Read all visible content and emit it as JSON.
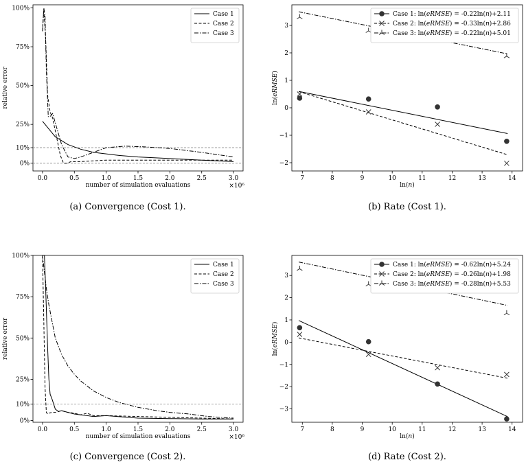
{
  "chart_data": [
    {
      "type": "line",
      "panel": "a",
      "caption": "(a)  Convergence (Cost 1).",
      "xlabel": "number of simulation evaluations",
      "ylabel": "relative error",
      "x_multiplier": "×10⁶",
      "xlim": [
        -0.15,
        3.15
      ],
      "ylim": [
        -0.05,
        1.02
      ],
      "xticks": [
        0.0,
        0.5,
        1.0,
        1.5,
        2.0,
        2.5,
        3.0
      ],
      "xtick_labels": [
        "0.0",
        "0.5",
        "1.0",
        "1.5",
        "2.0",
        "2.5",
        "3.0"
      ],
      "yticks": [
        0.0,
        0.1,
        0.25,
        0.5,
        0.75,
        1.0
      ],
      "ytick_labels": [
        "0%",
        "10%",
        "25%",
        "50%",
        "75%",
        "100%"
      ],
      "hlines": [
        0.0,
        0.1
      ],
      "legend": "top-right",
      "series": [
        {
          "name": "Case 1",
          "style": "solid",
          "x": [
            0.0,
            0.1,
            0.2,
            0.4,
            0.6,
            0.8,
            1.0,
            1.2,
            1.5,
            2.0,
            2.5,
            3.0
          ],
          "y": [
            0.27,
            0.22,
            0.17,
            0.12,
            0.09,
            0.07,
            0.06,
            0.05,
            0.04,
            0.03,
            0.02,
            0.01
          ]
        },
        {
          "name": "Case 2",
          "style": "dashed",
          "x": [
            0.0,
            0.02,
            0.05,
            0.08,
            0.12,
            0.16,
            0.22,
            0.28,
            0.33,
            0.38,
            0.45,
            0.6,
            1.0,
            2.0,
            3.0
          ],
          "y": [
            0.85,
            0.99,
            0.8,
            0.44,
            0.33,
            0.29,
            0.17,
            0.05,
            0.0,
            0.0,
            0.01,
            0.01,
            0.02,
            0.02,
            0.02
          ]
        },
        {
          "name": "Case 3",
          "style": "dashdot",
          "x": [
            0.0,
            0.02,
            0.04,
            0.06,
            0.09,
            0.12,
            0.16,
            0.2,
            0.3,
            0.4,
            0.5,
            0.6,
            0.8,
            1.0,
            1.3,
            1.6,
            2.0,
            2.5,
            3.0
          ],
          "y": [
            0.85,
            1.0,
            0.95,
            0.6,
            0.3,
            0.3,
            0.32,
            0.26,
            0.12,
            0.04,
            0.03,
            0.04,
            0.07,
            0.1,
            0.11,
            0.105,
            0.095,
            0.07,
            0.04
          ]
        }
      ]
    },
    {
      "type": "scatter",
      "panel": "b",
      "caption": "(b)  Rate (Cost 1).",
      "xlabel": "ln(𝑛)",
      "ylabel": "ln(𝑒𝑅𝑀𝑆𝐸)",
      "xlim": [
        6.65,
        14.35
      ],
      "ylim": [
        -2.3,
        3.75
      ],
      "xticks": [
        7,
        8,
        9,
        10,
        11,
        12,
        13,
        14
      ],
      "xtick_labels": [
        "7",
        "8",
        "9",
        "10",
        "11",
        "12",
        "13",
        "14"
      ],
      "yticks": [
        -2,
        -1,
        0,
        1,
        2,
        3
      ],
      "ytick_labels": [
        "−2",
        "−1",
        "0",
        "1",
        "2",
        "3"
      ],
      "legend": "top-right",
      "series": [
        {
          "name": "Case 1: ln(𝑒𝑅𝑀𝑆𝐸) = -0.22ln(𝑛)+2.11",
          "marker": "circle",
          "line": "solid",
          "slope": -0.22,
          "intercept": 2.11,
          "x": [
            6.91,
            9.21,
            11.51,
            13.82
          ],
          "y": [
            0.35,
            0.32,
            0.03,
            -1.22
          ]
        },
        {
          "name": "Case 2: ln(𝑒𝑅𝑀𝑆𝐸) = -0.33ln(𝑛)+2.86",
          "marker": "x",
          "line": "dashed",
          "slope": -0.33,
          "intercept": 2.86,
          "x": [
            6.91,
            9.21,
            11.51,
            13.82
          ],
          "y": [
            0.5,
            -0.15,
            -0.6,
            -2.02
          ]
        },
        {
          "name": "Case 3: ln(𝑒𝑅𝑀𝑆𝐸) = -0.22ln(𝑛)+5.01",
          "marker": "tri",
          "line": "dashdot",
          "slope": -0.22,
          "intercept": 5.01,
          "x": [
            6.91,
            9.21,
            11.51,
            13.82
          ],
          "y": [
            3.3,
            2.8,
            2.5,
            1.88
          ]
        }
      ]
    },
    {
      "type": "line",
      "panel": "c",
      "caption": "(c)  Convergence (Cost 2).",
      "xlabel": "number of simulation evaluations",
      "ylabel": "relative error",
      "x_multiplier": "×10⁶",
      "xlim": [
        -0.15,
        3.15
      ],
      "ylim": [
        -0.01,
        1.0
      ],
      "xticks": [
        0.0,
        0.5,
        1.0,
        1.5,
        2.0,
        2.5,
        3.0
      ],
      "xtick_labels": [
        "0.0",
        "0.5",
        "1.0",
        "1.5",
        "2.0",
        "2.5",
        "3.0"
      ],
      "yticks": [
        0.0,
        0.1,
        0.25,
        0.5,
        0.75,
        1.0
      ],
      "ytick_labels": [
        "0%",
        "10%",
        "25%",
        "50%",
        "75%",
        "100%"
      ],
      "hlines": [
        0.1
      ],
      "legend": "top-right",
      "series": [
        {
          "name": "Case 1",
          "style": "solid",
          "x": [
            0.0,
            0.03,
            0.05,
            0.08,
            0.1,
            0.12,
            0.15,
            0.2,
            0.25,
            0.3,
            0.4,
            0.5,
            0.6,
            0.8,
            1.0,
            1.5,
            2.0,
            2.5,
            3.0
          ],
          "y": [
            1.0,
            1.0,
            0.8,
            0.45,
            0.25,
            0.16,
            0.13,
            0.07,
            0.055,
            0.06,
            0.05,
            0.04,
            0.035,
            0.025,
            0.03,
            0.015,
            0.012,
            0.01,
            0.01
          ]
        },
        {
          "name": "Case 2",
          "style": "dashed",
          "x": [
            0.0,
            0.02,
            0.04,
            0.06,
            0.08,
            0.1,
            0.15,
            0.2,
            0.3,
            0.4,
            0.5,
            0.6,
            0.7,
            0.8,
            1.0,
            1.5,
            2.0,
            2.5,
            3.0
          ],
          "y": [
            1.0,
            0.6,
            0.2,
            0.05,
            0.04,
            0.045,
            0.05,
            0.05,
            0.06,
            0.05,
            0.045,
            0.035,
            0.045,
            0.03,
            0.03,
            0.025,
            0.02,
            0.015,
            0.01
          ]
        },
        {
          "name": "Case 3",
          "style": "dashdot",
          "x": [
            0.0,
            0.03,
            0.06,
            0.1,
            0.15,
            0.2,
            0.3,
            0.4,
            0.5,
            0.6,
            0.8,
            1.0,
            1.2,
            1.5,
            1.8,
            2.0,
            2.3,
            2.6,
            3.0
          ],
          "y": [
            1.0,
            0.9,
            0.8,
            0.7,
            0.6,
            0.5,
            0.4,
            0.33,
            0.28,
            0.24,
            0.18,
            0.14,
            0.11,
            0.08,
            0.06,
            0.05,
            0.04,
            0.025,
            0.015
          ]
        }
      ]
    },
    {
      "type": "scatter",
      "panel": "d",
      "caption": "(d)  Rate (Cost 2).",
      "xlabel": "ln(𝑛)",
      "ylabel": "ln(𝑒𝑅𝑀𝑆𝐸)",
      "xlim": [
        6.65,
        14.35
      ],
      "ylim": [
        -3.6,
        3.9
      ],
      "xticks": [
        7,
        8,
        9,
        10,
        11,
        12,
        13,
        14
      ],
      "xtick_labels": [
        "7",
        "8",
        "9",
        "10",
        "11",
        "12",
        "13",
        "14"
      ],
      "yticks": [
        -3,
        -2,
        -1,
        0,
        1,
        2,
        3
      ],
      "ytick_labels": [
        "−3",
        "−2",
        "−1",
        "0",
        "1",
        "2",
        "3"
      ],
      "legend": "top-right",
      "series": [
        {
          "name": "Case 1: ln(𝑒𝑅𝑀𝑆𝐸) = -0.62ln(𝑛)+5.24",
          "marker": "circle",
          "line": "solid",
          "slope": -0.62,
          "intercept": 5.24,
          "x": [
            6.91,
            9.21,
            11.51,
            13.82
          ],
          "y": [
            0.65,
            0.02,
            -1.88,
            -3.45
          ]
        },
        {
          "name": "Case 2: ln(𝑒𝑅𝑀𝑆𝐸) = -0.26ln(𝑛)+1.98",
          "marker": "x",
          "line": "dashed",
          "slope": -0.26,
          "intercept": 1.98,
          "x": [
            6.91,
            9.21,
            11.51,
            13.82
          ],
          "y": [
            0.35,
            -0.55,
            -1.15,
            -1.45
          ]
        },
        {
          "name": "Case 3: ln(𝑒𝑅𝑀𝑆𝐸) = -0.28ln(𝑛)+5.53",
          "marker": "tri",
          "line": "dashdot",
          "slope": -0.28,
          "intercept": 5.53,
          "x": [
            6.91,
            9.21,
            11.51,
            13.82
          ],
          "y": [
            3.3,
            2.6,
            2.4,
            1.3
          ]
        }
      ]
    }
  ]
}
